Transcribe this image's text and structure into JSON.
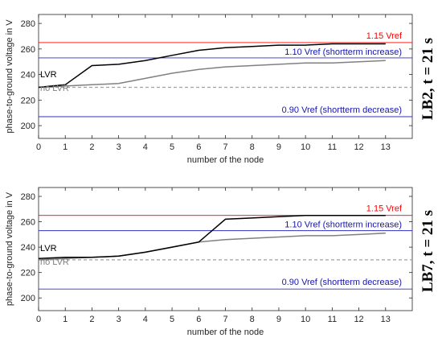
{
  "chart_data": [
    {
      "type": "line",
      "side_label": "LB2, t = 21 s",
      "ylabel": "phase-to-ground voltage in V",
      "xlabel": "number of the node",
      "xlim": [
        0,
        14
      ],
      "ylim": [
        190,
        287
      ],
      "x_ticks": [
        "0",
        "1",
        "2",
        "3",
        "4",
        "5",
        "6",
        "7",
        "8",
        "9",
        "10",
        "11",
        "12",
        "13"
      ],
      "y_ticks": [
        "200",
        "220",
        "240",
        "260",
        "280"
      ],
      "grid": false,
      "series": [
        {
          "name": "LVR",
          "color": "#000000",
          "dash": "none",
          "x": [
            0,
            1,
            2,
            3,
            4,
            5,
            6,
            7,
            8,
            9,
            10,
            11,
            12,
            13
          ],
          "y": [
            230,
            232,
            247,
            248,
            251,
            255,
            259,
            261,
            262,
            263,
            263,
            264,
            264,
            264
          ]
        },
        {
          "name": "no LVR",
          "color": "#808080",
          "dash": "none",
          "x": [
            0,
            1,
            2,
            3,
            4,
            5,
            6,
            7,
            8,
            9,
            10,
            11,
            12,
            13
          ],
          "y": [
            230,
            231,
            232,
            233,
            237,
            241,
            244,
            246,
            247,
            248,
            249,
            249,
            250,
            251
          ]
        }
      ],
      "hlines": [
        {
          "y": 265,
          "label": "1.15 Vref",
          "color": "#ff0000",
          "label_color": "#ff0000",
          "dash": "none"
        },
        {
          "y": 253,
          "label": "1.10 Vref (shortterm increase)",
          "color": "#3030c0",
          "label_color": "#1515b0",
          "dash": "none"
        },
        {
          "y": 230,
          "label": "",
          "color": "#a0a0a0",
          "label_color": "#808080",
          "dash": "4,3"
        },
        {
          "y": 207,
          "label": "0.90 Vref (shortterm decrease)",
          "color": "#3030c0",
          "label_color": "#1515b0",
          "dash": "none"
        }
      ]
    },
    {
      "type": "line",
      "side_label": "LB7, t = 21 s",
      "ylabel": "phase-to-ground voltage in V",
      "xlabel": "number of the node",
      "xlim": [
        0,
        14
      ],
      "ylim": [
        190,
        287
      ],
      "x_ticks": [
        "0",
        "1",
        "2",
        "3",
        "4",
        "5",
        "6",
        "7",
        "8",
        "9",
        "10",
        "11",
        "12",
        "13"
      ],
      "y_ticks": [
        "200",
        "220",
        "240",
        "260",
        "280"
      ],
      "grid": false,
      "series": [
        {
          "name": "LVR",
          "color": "#000000",
          "dash": "none",
          "x": [
            0,
            1,
            2,
            3,
            4,
            5,
            6,
            7,
            8,
            9,
            10,
            11,
            12,
            13
          ],
          "y": [
            231,
            232,
            232,
            233,
            236,
            240,
            244,
            262,
            263,
            264,
            265,
            265,
            265,
            265
          ]
        },
        {
          "name": "no LVR",
          "color": "#808080",
          "dash": "none",
          "x": [
            0,
            1,
            2,
            3,
            4,
            5,
            6,
            7,
            8,
            9,
            10,
            11,
            12,
            13
          ],
          "y": [
            230,
            231,
            232,
            233,
            236,
            240,
            244,
            246,
            247,
            248,
            249,
            249,
            250,
            251
          ]
        }
      ],
      "hlines": [
        {
          "y": 265,
          "label": "1.15 Vref",
          "color": "#ff0000",
          "label_color": "#ff0000",
          "dash": "none"
        },
        {
          "y": 253,
          "label": "1.10 Vref (shortterm increase)",
          "color": "#3030c0",
          "label_color": "#1515b0",
          "dash": "none"
        },
        {
          "y": 230,
          "label": "",
          "color": "#a0a0a0",
          "label_color": "#808080",
          "dash": "4,3"
        },
        {
          "y": 207,
          "label": "0.90 Vref (shortterm decrease)",
          "color": "#3030c0",
          "label_color": "#1515b0",
          "dash": "none"
        }
      ]
    }
  ]
}
